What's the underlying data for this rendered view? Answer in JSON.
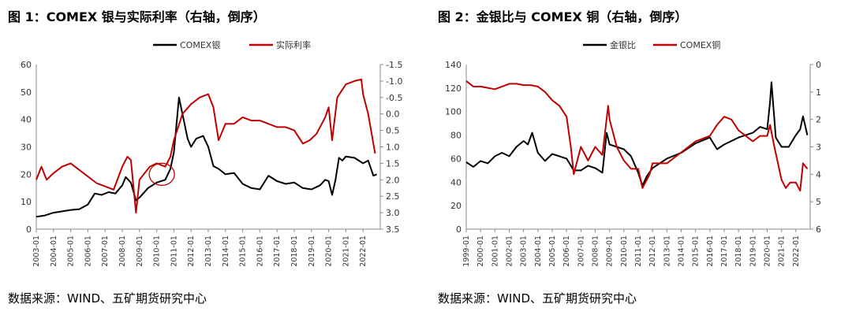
{
  "charts": [
    {
      "title": "图 1：COMEX 银与实际利率（右轴，倒序）",
      "source": "数据来源：WIND、五矿期货研究中心",
      "chart_data": {
        "type": "line",
        "left_axis": {
          "ylim": [
            0,
            60
          ],
          "ticks": [
            "0",
            "10",
            "20",
            "30",
            "40",
            "50",
            "60"
          ]
        },
        "right_axis": {
          "ylim": [
            3.5,
            -1.5
          ],
          "inverted": true,
          "ticks": [
            "-1.5",
            "-1.0",
            "-0.5",
            "0.0",
            "0.5",
            "1.0",
            "1.5",
            "2.0",
            "2.5",
            "3.0",
            "3.5"
          ]
        },
        "xlim": [
          2003.0,
          2023.0
        ],
        "x_ticks": [
          "2003-01",
          "2004-01",
          "2005-01",
          "2006-01",
          "2007-01",
          "2008-01",
          "2009-01",
          "2010-01",
          "2011-01",
          "2012-01",
          "2013-01",
          "2014-01",
          "2015-01",
          "2016-01",
          "2017-01",
          "2018-01",
          "2019-01",
          "2020-01",
          "2021-01",
          "2022-01"
        ],
        "legend_position": "top-center",
        "annotation": {
          "shape": "circle",
          "x": 2010.3,
          "y_left": 20
        },
        "series": [
          {
            "name": "COMEX银",
            "axis": "left",
            "color": "#000000",
            "x": [
              2003.0,
              2003.5,
              2004.0,
              2004.5,
              2005.0,
              2005.5,
              2006.0,
              2006.4,
              2006.8,
              2007.2,
              2007.6,
              2008.0,
              2008.2,
              2008.5,
              2008.8,
              2009.0,
              2009.5,
              2010.0,
              2010.5,
              2010.8,
              2011.0,
              2011.3,
              2011.6,
              2011.8,
              2012.0,
              2012.3,
              2012.7,
              2013.0,
              2013.3,
              2013.6,
              2014.0,
              2014.5,
              2015.0,
              2015.5,
              2016.0,
              2016.5,
              2017.0,
              2017.5,
              2018.0,
              2018.5,
              2019.0,
              2019.5,
              2019.8,
              2020.0,
              2020.2,
              2020.4,
              2020.6,
              2020.8,
              2021.0,
              2021.5,
              2022.0,
              2022.3,
              2022.6,
              2022.8
            ],
            "values": [
              4.5,
              5.0,
              6.0,
              6.5,
              7.0,
              7.3,
              9.0,
              13.0,
              12.5,
              13.5,
              13.0,
              16.0,
              19.0,
              17.0,
              10.5,
              11.5,
              15.0,
              17.0,
              18.0,
              22.0,
              28.0,
              48.0,
              39.0,
              33.0,
              30.0,
              33.0,
              34.0,
              30.0,
              23.0,
              22.0,
              20.0,
              20.5,
              16.5,
              15.0,
              14.5,
              19.5,
              17.5,
              16.5,
              17.0,
              15.0,
              14.5,
              16.0,
              18.0,
              17.5,
              12.5,
              18.0,
              26.0,
              25.0,
              26.5,
              26.0,
              24.0,
              25.0,
              19.5,
              20.0
            ]
          },
          {
            "name": "实际利率",
            "axis": "right",
            "color": "#c00000",
            "x": [
              2003.0,
              2003.3,
              2003.6,
              2004.0,
              2004.5,
              2005.0,
              2005.5,
              2006.0,
              2006.5,
              2007.0,
              2007.5,
              2008.0,
              2008.3,
              2008.5,
              2008.8,
              2009.0,
              2009.3,
              2009.6,
              2010.0,
              2010.5,
              2010.8,
              2011.0,
              2011.5,
              2012.0,
              2012.5,
              2013.0,
              2013.3,
              2013.6,
              2014.0,
              2014.5,
              2015.0,
              2015.5,
              2016.0,
              2016.5,
              2017.0,
              2017.5,
              2018.0,
              2018.5,
              2018.9,
              2019.3,
              2019.8,
              2020.0,
              2020.2,
              2020.5,
              2021.0,
              2021.5,
              2021.9,
              2022.0,
              2022.3,
              2022.5,
              2022.7
            ],
            "values": [
              2.0,
              1.6,
              2.0,
              1.8,
              1.6,
              1.5,
              1.7,
              1.9,
              2.1,
              2.2,
              2.3,
              1.6,
              1.3,
              1.4,
              3.0,
              2.0,
              1.8,
              1.6,
              1.5,
              1.6,
              1.3,
              0.8,
              0.0,
              -0.3,
              -0.5,
              -0.6,
              -0.2,
              0.8,
              0.3,
              0.3,
              0.1,
              0.2,
              0.2,
              0.3,
              0.4,
              0.4,
              0.5,
              0.9,
              0.8,
              0.6,
              0.1,
              -0.2,
              0.8,
              -0.5,
              -0.9,
              -1.0,
              -1.05,
              -0.6,
              0.0,
              0.6,
              1.2
            ]
          }
        ]
      }
    },
    {
      "title": "图 2：金银比与 COMEX 铜（右轴，倒序）",
      "source": "数据来源：WIND、五矿期货研究中心",
      "chart_data": {
        "type": "line",
        "left_axis": {
          "ylim": [
            0,
            140
          ],
          "ticks": [
            "0",
            "20",
            "40",
            "60",
            "80",
            "100",
            "120",
            "140"
          ]
        },
        "right_axis": {
          "ylim": [
            6,
            0
          ],
          "inverted": true,
          "ticks": [
            "0",
            "1",
            "2",
            "3",
            "4",
            "5",
            "6"
          ]
        },
        "xlim": [
          1999.0,
          2023.0
        ],
        "x_ticks": [
          "1999-01",
          "2000-01",
          "2001-01",
          "2002-01",
          "2003-01",
          "2004-01",
          "2005-01",
          "2006-01",
          "2007-01",
          "2008-01",
          "2009-01",
          "2010-01",
          "2011-01",
          "2012-01",
          "2013-01",
          "2014-01",
          "2015-01",
          "2016-01",
          "2017-01",
          "2018-01",
          "2019-01",
          "2020-01",
          "2021-01",
          "2022-01"
        ],
        "legend_position": "top-center",
        "series": [
          {
            "name": "金银比",
            "axis": "left",
            "color": "#000000",
            "x": [
              1999.0,
              1999.5,
              2000.0,
              2000.5,
              2001.0,
              2001.5,
              2002.0,
              2002.5,
              2003.0,
              2003.3,
              2003.6,
              2004.0,
              2004.5,
              2005.0,
              2005.5,
              2006.0,
              2006.5,
              2007.0,
              2007.5,
              2008.0,
              2008.5,
              2008.8,
              2009.0,
              2009.5,
              2010.0,
              2010.5,
              2011.0,
              2011.3,
              2011.6,
              2012.0,
              2013.0,
              2014.0,
              2015.0,
              2016.0,
              2016.5,
              2017.0,
              2018.0,
              2019.0,
              2019.5,
              2020.0,
              2020.2,
              2020.3,
              2020.6,
              2021.0,
              2021.5,
              2022.0,
              2022.3,
              2022.5,
              2022.8
            ],
            "values": [
              57,
              53,
              58,
              56,
              62,
              65,
              62,
              70,
              75,
              72,
              82,
              65,
              58,
              64,
              62,
              60,
              50,
              50,
              54,
              52,
              48,
              82,
              72,
              70,
              68,
              62,
              48,
              37,
              45,
              52,
              60,
              65,
              73,
              78,
              68,
              72,
              78,
              82,
              87,
              85,
              108,
              125,
              78,
              70,
              70,
              80,
              85,
              96,
              80
            ]
          },
          {
            "name": "COMEX铜",
            "axis": "right",
            "color": "#c00000",
            "x": [
              1999.0,
              1999.5,
              2000.0,
              2000.5,
              2001.0,
              2001.5,
              2002.0,
              2002.5,
              2003.0,
              2003.5,
              2004.0,
              2004.5,
              2005.0,
              2005.5,
              2006.0,
              2006.3,
              2006.5,
              2006.8,
              2007.0,
              2007.5,
              2008.0,
              2008.5,
              2008.9,
              2009.0,
              2009.5,
              2010.0,
              2010.5,
              2011.0,
              2011.3,
              2011.8,
              2012.0,
              2013.0,
              2014.0,
              2015.0,
              2016.0,
              2016.5,
              2017.0,
              2017.5,
              2018.0,
              2018.5,
              2019.0,
              2019.5,
              2020.0,
              2020.2,
              2020.5,
              2021.0,
              2021.3,
              2021.6,
              2022.0,
              2022.3,
              2022.5,
              2022.8
            ],
            "values": [
              0.6,
              0.8,
              0.8,
              0.85,
              0.9,
              0.8,
              0.7,
              0.7,
              0.75,
              0.75,
              0.8,
              1.0,
              1.3,
              1.5,
              1.9,
              3.0,
              4.0,
              3.4,
              3.0,
              3.5,
              3.0,
              3.3,
              1.5,
              2.0,
              3.0,
              3.5,
              3.8,
              3.8,
              4.5,
              4.0,
              3.6,
              3.6,
              3.2,
              2.8,
              2.6,
              2.2,
              1.9,
              2.0,
              2.4,
              2.6,
              2.8,
              2.6,
              2.6,
              2.2,
              3.0,
              4.2,
              4.5,
              4.3,
              4.3,
              4.6,
              3.6,
              3.8
            ]
          }
        ]
      }
    }
  ]
}
